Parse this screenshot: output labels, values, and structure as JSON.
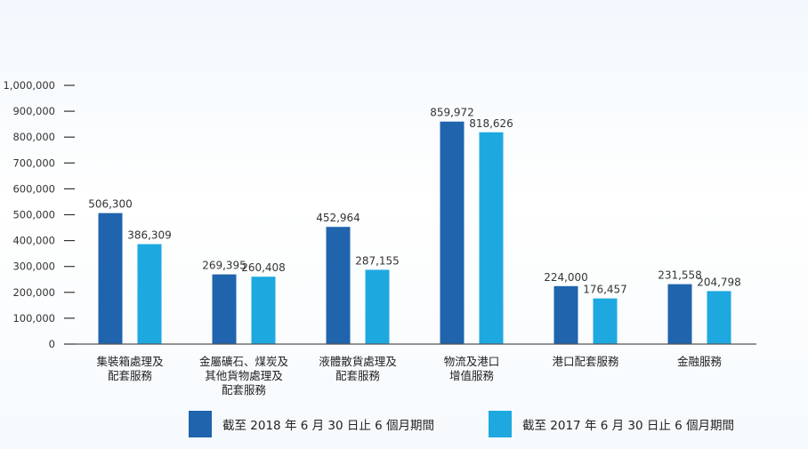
{
  "chart_data": {
    "type": "bar",
    "title": "",
    "xlabel": "",
    "ylabel": "",
    "ylim": [
      0,
      1000000
    ],
    "yticks": [
      0,
      100000,
      200000,
      300000,
      400000,
      500000,
      600000,
      700000,
      800000,
      900000,
      1000000
    ],
    "ytick_labels": [
      "0",
      "100,000",
      "200,000",
      "300,000",
      "400,000",
      "500,000",
      "600,000",
      "700,000",
      "800,000",
      "900,000",
      "1,000,000"
    ],
    "categories": [
      [
        "集裝箱處理及",
        "配套服務"
      ],
      [
        "金屬礦石、煤炭及",
        "其他貨物處理及",
        "配套服務"
      ],
      [
        "液體散貨處理及",
        "配套服務"
      ],
      [
        "物流及港口",
        "增值服務"
      ],
      [
        "港口配套服務"
      ],
      [
        "金融服務"
      ]
    ],
    "series": [
      {
        "name": "截至 2018 年 6 月 30 日止 6 個月期間",
        "color": "#1f64ad",
        "values": [
          506300,
          269395,
          452964,
          859972,
          224000,
          231558
        ],
        "labels": [
          "506,300",
          "269,395",
          "452,964",
          "859,972",
          "224,000",
          "231,558"
        ]
      },
      {
        "name": "截至 2017 年 6 月 30 日止 6 個月期間",
        "color": "#1ea8e0",
        "values": [
          386309,
          260408,
          287155,
          818626,
          176457,
          204798
        ],
        "labels": [
          "386,309",
          "260,408",
          "287,155",
          "818,626",
          "176,457",
          "204,798"
        ]
      }
    ],
    "grid": false,
    "legend_position": "bottom"
  }
}
